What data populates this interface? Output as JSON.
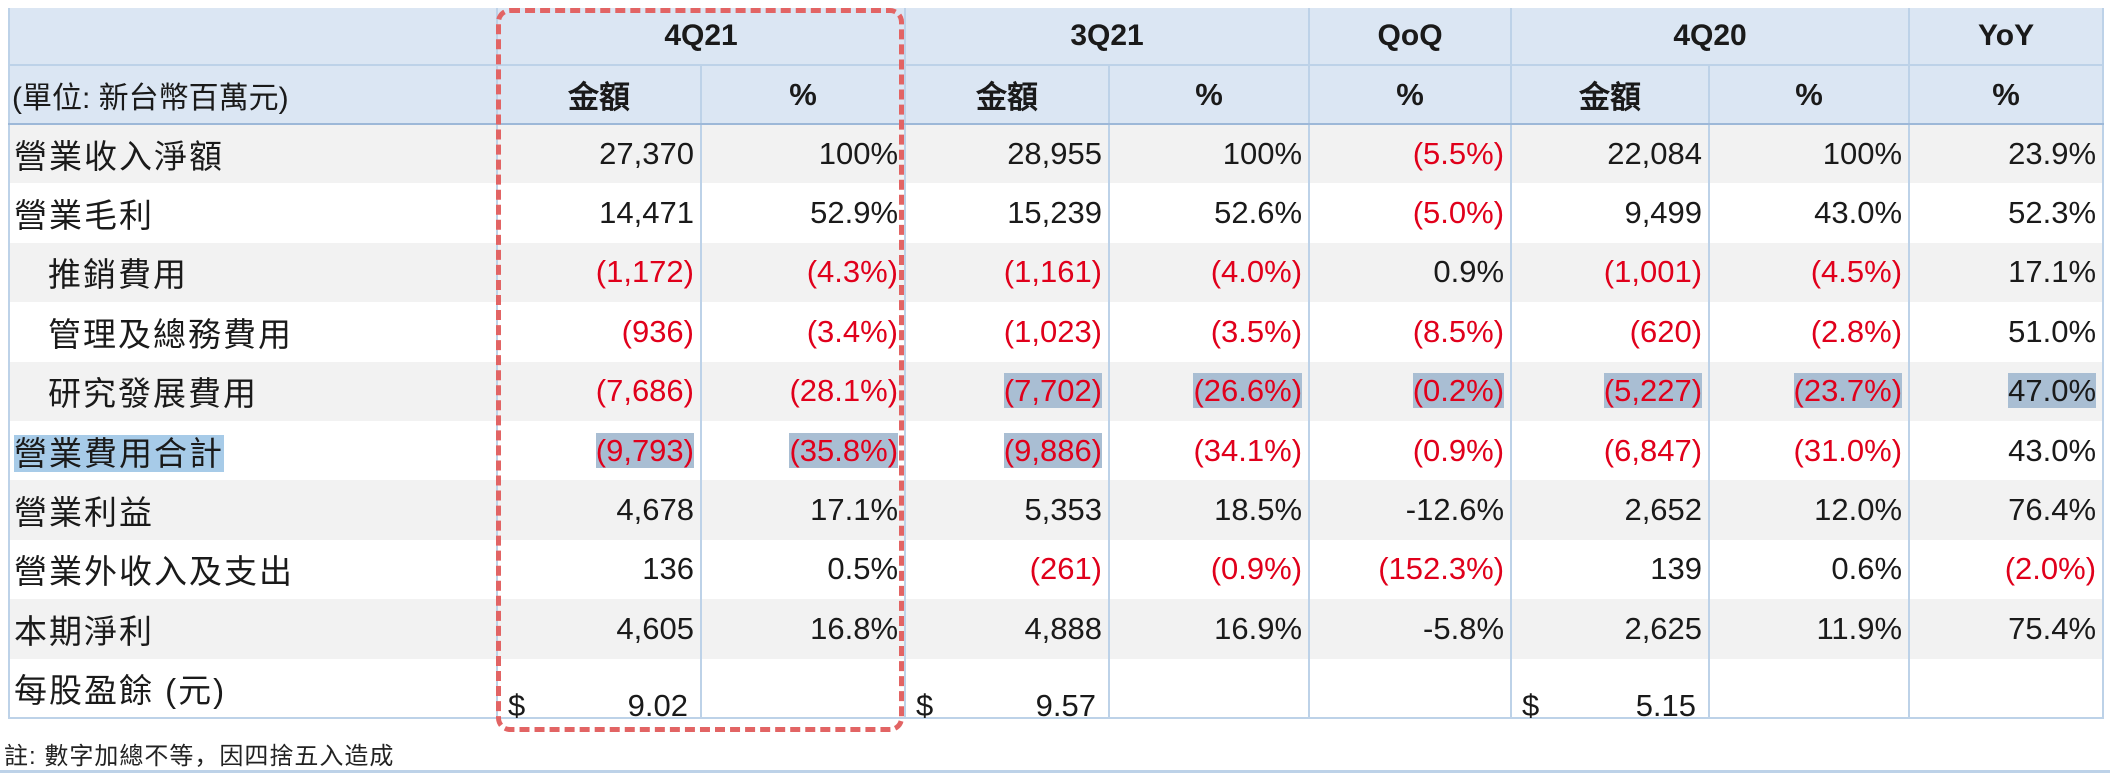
{
  "header": {
    "periods": [
      "4Q21",
      "3Q21",
      "QoQ",
      "4Q20",
      "YoY"
    ],
    "unit_label": "(單位: 新台幣百萬元)",
    "amount_label": "金額",
    "pct_label": "%"
  },
  "rows": [
    {
      "label": "營業收入淨額",
      "c": [
        "27,370",
        "100%",
        "28,955",
        "100%",
        "(5.5%)",
        "22,084",
        "100%",
        "23.9%"
      ]
    },
    {
      "label": "營業毛利",
      "c": [
        "14,471",
        "52.9%",
        "15,239",
        "52.6%",
        "(5.0%)",
        "9,499",
        "43.0%",
        "52.3%"
      ]
    },
    {
      "label": "推銷費用",
      "c": [
        "(1,172)",
        "(4.3%)",
        "(1,161)",
        "(4.0%)",
        "0.9%",
        "(1,001)",
        "(4.5%)",
        "17.1%"
      ]
    },
    {
      "label": "管理及總務費用",
      "c": [
        "(936)",
        "(3.4%)",
        "(1,023)",
        "(3.5%)",
        "(8.5%)",
        "(620)",
        "(2.8%)",
        "51.0%"
      ]
    },
    {
      "label": "研究發展費用",
      "c": [
        "(7,686)",
        "(28.1%)",
        "(7,702)",
        "(26.6%)",
        "(0.2%)",
        "(5,227)",
        "(23.7%)",
        "47.0%"
      ]
    },
    {
      "label": "營業費用合計",
      "c": [
        "(9,793)",
        "(35.8%)",
        "(9,886)",
        "(34.1%)",
        "(0.9%)",
        "(6,847)",
        "(31.0%)",
        "43.0%"
      ]
    },
    {
      "label": "營業利益",
      "c": [
        "4,678",
        "17.1%",
        "5,353",
        "18.5%",
        "-12.6%",
        "2,652",
        "12.0%",
        "76.4%"
      ]
    },
    {
      "label": "營業外收入及支出",
      "c": [
        "136",
        "0.5%",
        "(261)",
        "(0.9%)",
        "(152.3%)",
        "139",
        "0.6%",
        "(2.0%)"
      ]
    },
    {
      "label": "本期淨利",
      "c": [
        "4,605",
        "16.8%",
        "4,888",
        "16.9%",
        "-5.8%",
        "2,625",
        "11.9%",
        "75.4%"
      ]
    }
  ],
  "eps": {
    "label": "每股盈餘 (元)",
    "currency": "$",
    "values": [
      "9.02",
      "9.57",
      "5.15"
    ]
  },
  "footnote": "註: 數字加總不等，因四捨五入造成",
  "colors": {
    "negative": "#e0001b",
    "header_bg": "#dbe6f3",
    "highlight": "#e26464"
  }
}
